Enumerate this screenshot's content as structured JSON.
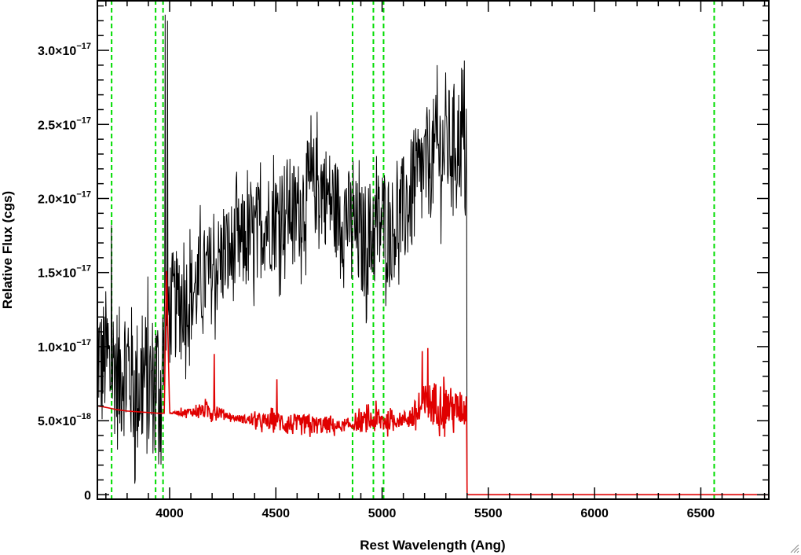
{
  "chart_data": {
    "type": "line",
    "title": "",
    "xlabel": "Rest Wavelength (Ang)",
    "ylabel": "Relative Flux (cgs)",
    "xlim": [
      3660,
      6820
    ],
    "ylim": [
      -3e-19,
      3.34e-17
    ],
    "x_ticks": [
      {
        "value": 4000,
        "label": "4000"
      },
      {
        "value": 4500,
        "label": "4500"
      },
      {
        "value": 5000,
        "label": "5000"
      },
      {
        "value": 5500,
        "label": "5500"
      },
      {
        "value": 6000,
        "label": "6000"
      },
      {
        "value": 6500,
        "label": "6500"
      }
    ],
    "y_ticks": [
      {
        "value": 0,
        "mantissa": "0",
        "exponent": ""
      },
      {
        "value": 5e-18,
        "mantissa": "5.0×10",
        "exponent": "−18"
      },
      {
        "value": 1e-17,
        "mantissa": "1.0×10",
        "exponent": "−17"
      },
      {
        "value": 1.5e-17,
        "mantissa": "1.5×10",
        "exponent": "−17"
      },
      {
        "value": 2e-17,
        "mantissa": "2.0×10",
        "exponent": "−17"
      },
      {
        "value": 2.5e-17,
        "mantissa": "2.5×10",
        "exponent": "−17"
      },
      {
        "value": 3e-17,
        "mantissa": "3.0×10",
        "exponent": "−17"
      }
    ],
    "x_minor_step": 100,
    "y_minor_step": 1e-18,
    "vertical_lines": {
      "color": "#00dd00",
      "style": "dashed",
      "x": [
        3727,
        3934,
        3969,
        4861,
        4959,
        5007,
        6563
      ]
    },
    "series": [
      {
        "color": "#000000",
        "x": [
          3660,
          3680,
          3700,
          3720,
          3740,
          3760,
          3780,
          3800,
          3820,
          3840,
          3860,
          3880,
          3900,
          3920,
          3940,
          3960,
          3980,
          4000,
          4050,
          4100,
          4150,
          4200,
          4250,
          4300,
          4350,
          4400,
          4450,
          4500,
          4550,
          4600,
          4650,
          4700,
          4750,
          4800,
          4850,
          4900,
          4950,
          5000,
          5050,
          5100,
          5150,
          5200,
          5250,
          5300,
          5350,
          5400
        ],
        "values": [
          1e-17,
          8.5e-18,
          9.5e-18,
          8e-18,
          9e-18,
          7.5e-18,
          9e-18,
          8.5e-18,
          8e-18,
          7e-18,
          7.5e-18,
          8e-18,
          7e-18,
          7.5e-18,
          8e-18,
          7e-18,
          1.2e-17,
          1.25e-17,
          1.3e-17,
          1.35e-17,
          1.45e-17,
          1.5e-17,
          1.6e-17,
          1.65e-17,
          1.7e-17,
          1.75e-17,
          1.85e-17,
          1.85e-17,
          1.95e-17,
          1.9e-17,
          2.05e-17,
          2.1e-17,
          2e-17,
          1.9e-17,
          1.85e-17,
          1.7e-17,
          1.75e-17,
          1.85e-17,
          1.8e-17,
          1.9e-17,
          2.05e-17,
          2.2e-17,
          2.3e-17,
          2.35e-17,
          2.4e-17,
          2.35e-17
        ],
        "noise": [
          4.5e-18,
          4.5e-18,
          4.5e-18,
          4.5e-18,
          5e-18,
          5e-18,
          5e-18,
          5e-18,
          5e-18,
          5e-18,
          5e-18,
          5e-18,
          5e-18,
          5e-18,
          5e-18,
          5e-18,
          4.5e-18,
          4e-18,
          3.5e-18,
          3.5e-18,
          3.5e-18,
          3.5e-18,
          3.5e-18,
          3.5e-18,
          3.5e-18,
          3.5e-18,
          3.5e-18,
          3.5e-18,
          3.5e-18,
          3.5e-18,
          3.5e-18,
          3.5e-18,
          3.5e-18,
          3.5e-18,
          3.5e-18,
          4e-18,
          4e-18,
          4e-18,
          3.5e-18,
          4e-18,
          4e-18,
          4e-18,
          4e-18,
          4e-18,
          4e-18,
          4e-18
        ],
        "spikes": [
          [
            3727,
            1.82e-17
          ],
          [
            3980,
            3.24e-17
          ],
          [
            3990,
            3.2e-17
          ],
          [
            5260,
            2.9e-17
          ],
          [
            5300,
            2.85e-17
          ],
          [
            5380,
            2.87e-17
          ]
        ],
        "after_cutoff": 0
      },
      {
        "color": "#e00000",
        "x": [
          3660,
          3700,
          3750,
          3800,
          3850,
          3900,
          3950,
          3975,
          3985,
          4000,
          4050,
          4100,
          4150,
          4200,
          4250,
          4300,
          4350,
          4400,
          4450,
          4500,
          4550,
          4600,
          4650,
          4700,
          4750,
          4800,
          4850,
          4900,
          4950,
          5000,
          5050,
          5100,
          5150,
          5200,
          5250,
          5300,
          5350,
          5400
        ],
        "values": [
          6e-18,
          5.9e-18,
          5.75e-18,
          5.65e-18,
          5.6e-18,
          5.55e-18,
          5.5e-18,
          5.5e-18,
          1.55e-17,
          5.5e-18,
          5.55e-18,
          5.6e-18,
          5.65e-18,
          5.7e-18,
          5.5e-18,
          5.2e-18,
          5.1e-18,
          5e-18,
          4.9e-18,
          5e-18,
          4.8e-18,
          4.7e-18,
          4.7e-18,
          4.7e-18,
          4.7e-18,
          4.6e-18,
          4.7e-18,
          4.9e-18,
          5e-18,
          5e-18,
          5e-18,
          5.1e-18,
          5.3e-18,
          6e-18,
          6.2e-18,
          6e-18,
          5.8e-18,
          5.8e-18
        ],
        "noise": [
          0,
          0,
          0,
          0,
          0,
          0,
          0,
          0,
          0,
          0,
          2e-19,
          3e-19,
          4e-19,
          8e-19,
          3e-19,
          2e-19,
          3e-19,
          4e-19,
          6e-19,
          6e-19,
          8e-19,
          7e-19,
          7e-19,
          6e-19,
          6e-19,
          4e-19,
          3e-19,
          7e-19,
          8e-19,
          9e-19,
          5e-19,
          5e-19,
          1e-18,
          1.5e-18,
          1.5e-18,
          1.5e-18,
          1.2e-18,
          1.2e-18
        ],
        "spikes": [
          [
            4210,
            9.5e-18
          ],
          [
            4505,
            7.8e-18
          ],
          [
            5190,
            9.7e-18
          ],
          [
            5215,
            9.9e-18
          ]
        ],
        "after_cutoff": 0
      }
    ],
    "cutoff_x": 5400
  }
}
